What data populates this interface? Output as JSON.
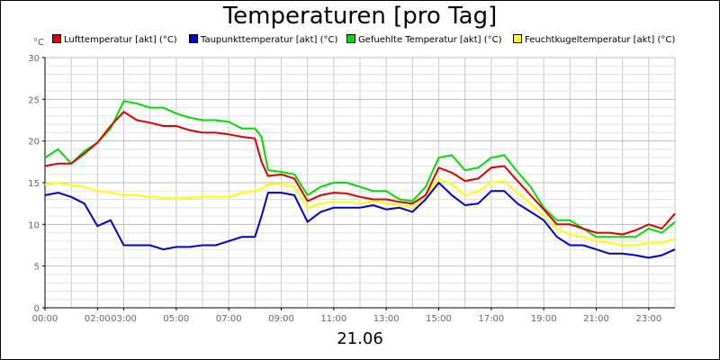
{
  "chart_data": {
    "type": "line",
    "title": "Temperaturen [pro Tag]",
    "ylabel": "°C",
    "xlabel": "21.06",
    "xlim": [
      0,
      24
    ],
    "ylim": [
      0,
      30
    ],
    "grid": true,
    "legend_position": "top",
    "y_ticks": [
      0,
      5,
      10,
      15,
      20,
      25,
      30
    ],
    "x_ticks": [
      {
        "hour": 0,
        "label": "00:00"
      },
      {
        "hour": 2,
        "label": "02:00"
      },
      {
        "hour": 3,
        "label": "03:00"
      },
      {
        "hour": 5,
        "label": "05:00"
      },
      {
        "hour": 7,
        "label": "07:00"
      },
      {
        "hour": 9,
        "label": "09:00"
      },
      {
        "hour": 11,
        "label": "11:00"
      },
      {
        "hour": 13,
        "label": "13:00"
      },
      {
        "hour": 15,
        "label": "15:00"
      },
      {
        "hour": 17,
        "label": "17:00"
      },
      {
        "hour": 19,
        "label": "19:00"
      },
      {
        "hour": 21,
        "label": "21:00"
      },
      {
        "hour": 23,
        "label": "23:00"
      }
    ],
    "x": [
      0,
      0.5,
      1,
      1.5,
      2,
      2.5,
      3,
      3.5,
      4,
      4.5,
      5,
      5.5,
      6,
      6.5,
      7,
      7.5,
      8,
      8.25,
      8.5,
      9,
      9.5,
      10,
      10.5,
      11,
      11.5,
      12,
      12.5,
      13,
      13.5,
      14,
      14.5,
      15,
      15.5,
      16,
      16.5,
      17,
      17.5,
      18,
      18.5,
      19,
      19.5,
      20,
      20.5,
      21,
      21.5,
      22,
      22.5,
      23,
      23.5,
      24
    ],
    "series": [
      {
        "name": "Lufttemperatur [akt] (°C)",
        "color": "#dd0000",
        "values": [
          17.0,
          17.3,
          17.3,
          18.5,
          19.8,
          21.8,
          23.5,
          22.5,
          22.2,
          21.8,
          21.8,
          21.3,
          21.0,
          21.0,
          20.8,
          20.5,
          20.3,
          17.5,
          15.8,
          16.0,
          15.5,
          12.8,
          13.5,
          13.8,
          13.7,
          13.3,
          13.0,
          13.0,
          12.7,
          12.5,
          13.5,
          16.8,
          16.2,
          15.2,
          15.5,
          16.8,
          17.0,
          15.2,
          13.5,
          11.8,
          10.0,
          10.0,
          9.5,
          9.0,
          9.0,
          8.8,
          9.3,
          10.0,
          9.5,
          11.3
        ]
      },
      {
        "name": "Taupunkttemperatur [akt] (°C)",
        "color": "#0000cc",
        "values": [
          13.5,
          13.8,
          13.3,
          12.5,
          9.8,
          10.5,
          7.5,
          7.5,
          7.5,
          7.0,
          7.3,
          7.3,
          7.5,
          7.5,
          8.0,
          8.5,
          8.5,
          11.0,
          13.8,
          13.8,
          13.5,
          10.3,
          11.5,
          12.0,
          12.0,
          12.0,
          12.3,
          11.8,
          12.0,
          11.5,
          13.0,
          15.0,
          13.5,
          12.3,
          12.5,
          14.0,
          14.0,
          12.5,
          11.5,
          10.5,
          8.5,
          7.5,
          7.5,
          7.0,
          6.5,
          6.5,
          6.3,
          6.0,
          6.3,
          7.0
        ]
      },
      {
        "name": "Gefuehlte Temperatur [akt] (°C)",
        "color": "#00dd00",
        "values": [
          18.0,
          19.0,
          17.3,
          18.8,
          19.8,
          21.5,
          24.8,
          24.5,
          24.0,
          24.0,
          23.3,
          22.8,
          22.5,
          22.5,
          22.3,
          21.5,
          21.5,
          20.5,
          16.5,
          16.3,
          16.0,
          13.5,
          14.5,
          15.0,
          15.0,
          14.5,
          14.0,
          14.0,
          13.0,
          12.8,
          14.5,
          18.0,
          18.3,
          16.5,
          16.8,
          18.0,
          18.3,
          16.3,
          14.5,
          12.0,
          10.5,
          10.5,
          9.5,
          8.5,
          8.5,
          8.5,
          8.5,
          9.5,
          9.0,
          10.3
        ]
      },
      {
        "name": "Feuchtkugeltemperatur [akt] (°C)",
        "color": "#ffff00",
        "values": [
          14.8,
          15.0,
          14.7,
          14.5,
          14.0,
          13.8,
          13.5,
          13.5,
          13.3,
          13.2,
          13.2,
          13.2,
          13.3,
          13.3,
          13.3,
          13.8,
          14.0,
          14.3,
          14.8,
          14.8,
          14.5,
          12.0,
          12.5,
          12.7,
          12.7,
          12.5,
          12.8,
          12.5,
          12.3,
          12.0,
          13.5,
          15.5,
          14.8,
          13.5,
          14.0,
          15.0,
          15.2,
          13.8,
          12.5,
          11.0,
          9.5,
          8.8,
          8.5,
          8.0,
          7.8,
          7.5,
          7.5,
          7.8,
          7.8,
          8.3
        ]
      }
    ]
  }
}
